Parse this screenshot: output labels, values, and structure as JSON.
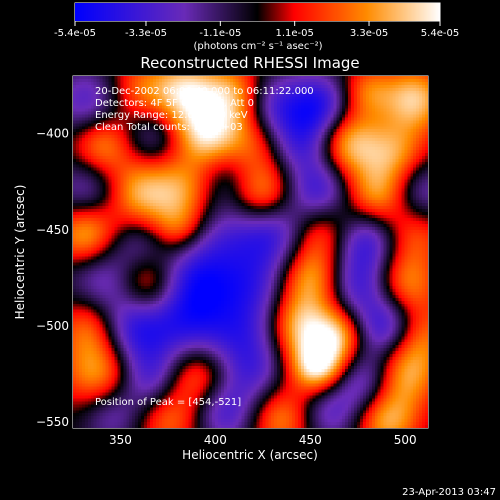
{
  "chart_data": {
    "type": "heatmap",
    "title": "Reconstructed RHESSI Image",
    "xlabel": "Heliocentric X (arcsec)",
    "ylabel": "Heliocentric Y (arcsec)",
    "xlim": [
      325,
      512
    ],
    "ylim": [
      -553,
      -370
    ],
    "xticks": [
      350,
      400,
      450,
      500
    ],
    "yticks": [
      -400,
      -450,
      -500,
      -550
    ],
    "colorbar": {
      "ticks": [
        "-5.4e-05",
        "-3.3e-05",
        "-1.1e-05",
        "1.1e-05",
        "3.3e-05",
        "5.4e-05"
      ],
      "tick_values": [
        -5.4e-05,
        -3.3e-05,
        -1.1e-05,
        1.1e-05,
        3.3e-05,
        5.4e-05
      ],
      "range": [
        -5.4e-05,
        5.4e-05
      ],
      "unit_label": "(photons cm⁻² s⁻¹ asec⁻²)"
    },
    "annotations": [
      "20-Dec-2002 06:06:40.000 to 06:11:22.000",
      "Detectors: 4F 5F 6F 7F 8F, Att 0",
      "Energy Range: 12.0 - 25.0 keV",
      "Clean     Total counts: 1.35E+03"
    ],
    "peak_label": "Position of Peak = [454,-521]",
    "peak": [
      454,
      -521
    ],
    "colormap": [
      "#0000ff",
      "#6a2bb8",
      "#000000",
      "#ff0000",
      "#ff8c00",
      "#ffffff"
    ]
  },
  "footer": {
    "date": "23-Apr-2013 03:47"
  }
}
